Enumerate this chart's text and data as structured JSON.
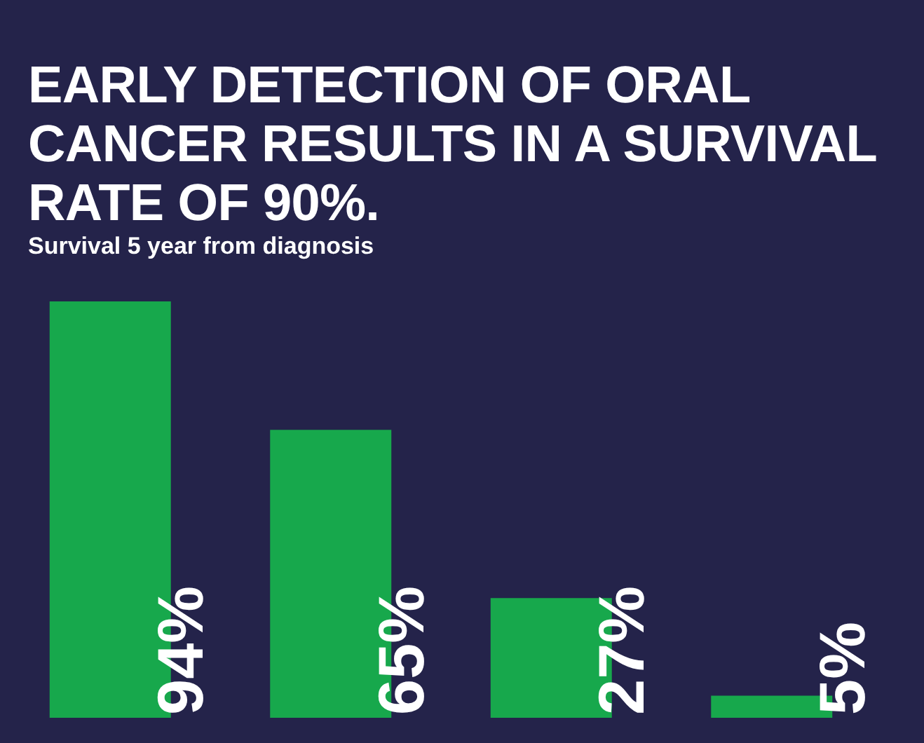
{
  "chart_data": {
    "type": "bar",
    "title": "EARLY DETECTION OF ORAL CANCER RESULTS IN A SURVIVAL RATE OF 90%.",
    "subtitle": "Survival 5 year from diagnosis",
    "categories": [
      null,
      null,
      null,
      null
    ],
    "values": [
      94,
      65,
      27,
      5
    ],
    "color": "#17a84c",
    "value_labels": [
      "94%",
      "65%",
      "27%",
      "5%"
    ],
    "tick_labels": false,
    "grid": false,
    "legend": false
  }
}
